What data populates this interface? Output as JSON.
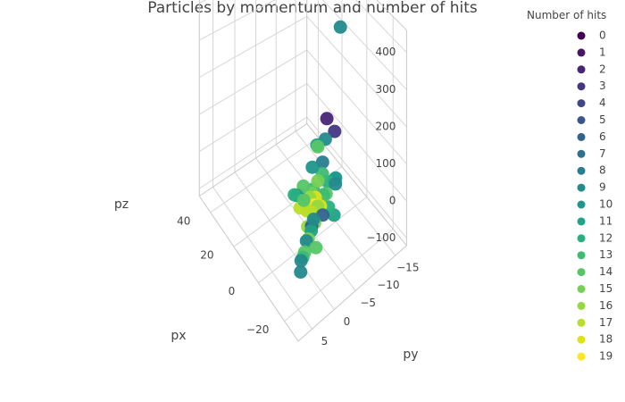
{
  "chart_data": {
    "type": "scatter",
    "subtype": "scatter3d",
    "title": "Particles by momentum and number of hits",
    "axes": {
      "x": {
        "label": "px",
        "ticks": [
          -20,
          0,
          20,
          40
        ],
        "range": [
          -30,
          50
        ]
      },
      "y": {
        "label": "py",
        "ticks": [
          -15,
          -10,
          -5,
          0,
          5
        ],
        "range": [
          -18,
          8
        ]
      },
      "z": {
        "label": "pz",
        "ticks": [
          -100,
          0,
          100,
          200,
          300,
          400
        ],
        "range": [
          -120,
          460
        ]
      }
    },
    "grid": true,
    "legend": {
      "title": "Number of hits",
      "placement": "right",
      "entries": [
        "0",
        "1",
        "2",
        "3",
        "4",
        "5",
        "6",
        "7",
        "8",
        "9",
        "10",
        "11",
        "12",
        "13",
        "14",
        "15",
        "16",
        "17",
        "18",
        "19"
      ]
    },
    "colorscale": [
      "#440154",
      "#481567",
      "#482677",
      "#453781",
      "#3f4788",
      "#39558c",
      "#32648e",
      "#2d718e",
      "#287d8e",
      "#238a8d",
      "#1f968b",
      "#20a386",
      "#29af7f",
      "#3dbc74",
      "#56c667",
      "#75d054",
      "#95d840",
      "#bade28",
      "#dde318",
      "#fde725"
    ],
    "points": [
      {
        "px": -5,
        "py": -3,
        "pz": 5,
        "hits": 19
      },
      {
        "px": -3,
        "py": -4,
        "pz": 8,
        "hits": 18
      },
      {
        "px": -6,
        "py": -2,
        "pz": 0,
        "hits": 17
      },
      {
        "px": -4,
        "py": -5,
        "pz": -5,
        "hits": 19
      },
      {
        "px": -2,
        "py": -3,
        "pz": 12,
        "hits": 16
      },
      {
        "px": -7,
        "py": -4,
        "pz": 3,
        "hits": 18
      },
      {
        "px": -3,
        "py": -2,
        "pz": -10,
        "hits": 17
      },
      {
        "px": 0,
        "py": -4,
        "pz": 6,
        "hits": 15
      },
      {
        "px": -8,
        "py": -3,
        "pz": 15,
        "hits": 16
      },
      {
        "px": -5,
        "py": -6,
        "pz": 10,
        "hits": 14
      },
      {
        "px": -1,
        "py": -1,
        "pz": -3,
        "hits": 17
      },
      {
        "px": -6,
        "py": -5,
        "pz": 20,
        "hits": 13
      },
      {
        "px": -4,
        "py": -1,
        "pz": 30,
        "hits": 14
      },
      {
        "px": -9,
        "py": -2,
        "pz": -15,
        "hits": 15
      },
      {
        "px": -10,
        "py": -5,
        "pz": 5,
        "hits": 12
      },
      {
        "px": 2,
        "py": -5,
        "pz": 0,
        "hits": 13
      },
      {
        "px": -3,
        "py": -7,
        "pz": 25,
        "hits": 12
      },
      {
        "px": -6,
        "py": -8,
        "pz": 40,
        "hits": 10
      },
      {
        "px": -2,
        "py": -6,
        "pz": 50,
        "hits": 13
      },
      {
        "px": 3,
        "py": -3,
        "pz": 20,
        "hits": 14
      },
      {
        "px": -5,
        "py": -4,
        "pz": 60,
        "hits": 15
      },
      {
        "px": -11,
        "py": -6,
        "pz": -20,
        "hits": 11
      },
      {
        "px": -7,
        "py": -1,
        "pz": -25,
        "hits": 16
      },
      {
        "px": 0,
        "py": 0,
        "pz": 35,
        "hits": 12
      },
      {
        "px": 5,
        "py": -2,
        "pz": -5,
        "hits": 10
      },
      {
        "px": -2,
        "py": -9,
        "pz": 10,
        "hits": 13
      },
      {
        "px": -9,
        "py": -7,
        "pz": 45,
        "hits": 9
      },
      {
        "px": -4,
        "py": -3,
        "pz": 100,
        "hits": 10
      },
      {
        "px": -5,
        "py": -4,
        "pz": 150,
        "hits": 14
      },
      {
        "px": -1,
        "py": -5,
        "pz": 130,
        "hits": 11
      },
      {
        "px": 1,
        "py": -7,
        "pz": 60,
        "hits": 8
      },
      {
        "px": 2,
        "py": -8,
        "pz": 110,
        "hits": 9
      },
      {
        "px": 1,
        "py": -10,
        "pz": 120,
        "hits": 3
      },
      {
        "px": 4,
        "py": -9,
        "pz": 150,
        "hits": 2
      },
      {
        "px": 3,
        "py": -4,
        "pz": -40,
        "hits": 9
      },
      {
        "px": 6,
        "py": -3,
        "pz": -15,
        "hits": 8
      },
      {
        "px": -10,
        "py": -1,
        "pz": -10,
        "hits": 5
      },
      {
        "px": -12,
        "py": -3,
        "pz": 10,
        "hits": 6
      },
      {
        "px": -13,
        "py": 0,
        "pz": 0,
        "hits": 11
      },
      {
        "px": -16,
        "py": 2,
        "pz": 5,
        "hits": 9
      },
      {
        "px": -18,
        "py": 3,
        "pz": -5,
        "hits": 14
      },
      {
        "px": -20,
        "py": 4,
        "pz": 0,
        "hits": 13
      },
      {
        "px": -14,
        "py": 1,
        "pz": -8,
        "hits": 15
      },
      {
        "px": -22,
        "py": 5,
        "pz": 10,
        "hits": 9
      },
      {
        "px": -25,
        "py": 6,
        "pz": 5,
        "hits": 9
      },
      {
        "px": -23,
        "py": 2,
        "pz": 20,
        "hits": 14
      },
      {
        "px": -18,
        "py": 1,
        "pz": 60,
        "hits": 9
      },
      {
        "px": 12,
        "py": -15,
        "pz": 330,
        "hits": 9
      }
    ]
  }
}
